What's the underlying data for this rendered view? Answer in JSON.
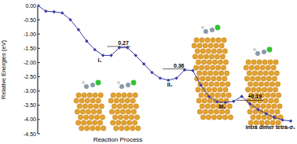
{
  "chart_data": {
    "type": "line",
    "y_label": "Relative Energies (eV)",
    "x_label": "Reaction Process",
    "x": [
      0,
      1,
      2,
      3,
      4,
      5,
      6,
      7,
      8,
      9,
      10,
      11,
      12,
      13,
      14,
      15,
      16,
      17,
      18,
      19,
      20,
      21,
      22,
      23,
      24,
      25,
      26,
      27,
      28,
      29,
      30,
      31
    ],
    "values": [
      0.0,
      -0.2,
      -0.22,
      -0.26,
      -0.5,
      -0.85,
      -1.25,
      -1.55,
      -1.75,
      -1.75,
      -1.48,
      -1.48,
      -1.75,
      -2.05,
      -2.35,
      -2.55,
      -2.62,
      -2.55,
      -2.26,
      -2.28,
      -2.8,
      -3.2,
      -3.38,
      -3.4,
      -3.36,
      -3.19,
      -3.45,
      -3.65,
      -3.8,
      -3.92,
      -4.02,
      -4.05
    ],
    "color": "#3b3ba6",
    "marker": "diamond",
    "line_style": "solid",
    "xlim": [
      0,
      31
    ],
    "ylim": [
      -4.5,
      0
    ],
    "yticks": [
      {
        "value": 0,
        "label": "0.00"
      },
      {
        "value": -0.5,
        "label": "-0.50"
      },
      {
        "value": -1,
        "label": "-1.00"
      },
      {
        "value": -1.5,
        "label": "-1.50"
      },
      {
        "value": -2,
        "label": "-2.00"
      },
      {
        "value": -2.5,
        "label": "-2.50"
      },
      {
        "value": -3,
        "label": "-3.00"
      },
      {
        "value": -3.5,
        "label": "-3.50"
      },
      {
        "value": -4,
        "label": "-4.00"
      },
      {
        "value": -4.5,
        "label": "-4.50"
      }
    ],
    "tick_labels": "y",
    "grid": false,
    "annotations": [
      {
        "text": "I₁",
        "x": 7.6,
        "y": -2.0
      },
      {
        "text": "0.27",
        "x": 10.5,
        "y": -1.38
      },
      {
        "text": "II₁",
        "x": 16.2,
        "y": -2.85
      },
      {
        "text": "0.36",
        "x": 17.3,
        "y": -2.17
      },
      {
        "text": "III₁",
        "x": 22.6,
        "y": -3.62
      },
      {
        "text": "+0.19",
        "x": 26.6,
        "y": -3.27
      },
      {
        "text": "intra dimer tetra-σ₁",
        "x": 31,
        "y": -4.33
      }
    ]
  }
}
